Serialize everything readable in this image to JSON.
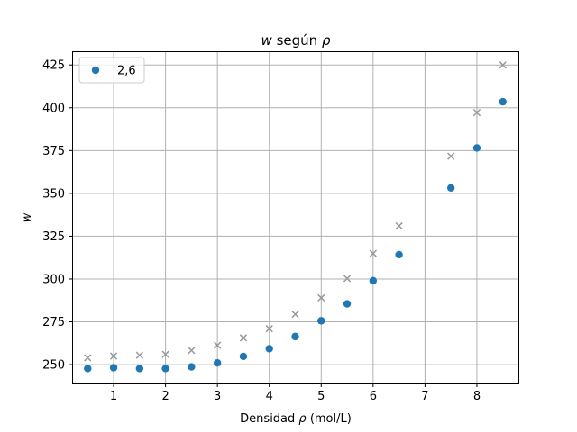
{
  "chart_data": {
    "type": "scatter",
    "title": {
      "var": "w",
      "mid": " según ",
      "sym": "ρ"
    },
    "xlabel": {
      "pre": "Densidad ",
      "sym": "ρ",
      "post": " (mol/L)"
    },
    "ylabel": "w",
    "xlim": [
      0.2,
      8.8
    ],
    "ylim": [
      239,
      433
    ],
    "xticks": [
      1,
      2,
      3,
      4,
      5,
      6,
      7,
      8
    ],
    "yticks": [
      250,
      275,
      300,
      325,
      350,
      375,
      400,
      425
    ],
    "grid": true,
    "legend_position": "top-left",
    "series": [
      {
        "name": "2,6",
        "marker": "circle",
        "color": "#1f77b4",
        "x": [
          0.5,
          1.0,
          1.5,
          2.0,
          2.5,
          3.0,
          3.5,
          4.0,
          4.5,
          5.0,
          5.5,
          6.0,
          6.5,
          7.5,
          8.0,
          8.5
        ],
        "y": [
          247.7,
          248.2,
          247.7,
          247.7,
          248.7,
          251.0,
          254.8,
          259.3,
          266.4,
          275.6,
          285.5,
          299.0,
          314.2,
          353.2,
          376.5,
          403.5
        ]
      },
      {
        "marker": "x",
        "color": "#999999",
        "x": [
          0.5,
          1.0,
          1.5,
          2.0,
          2.5,
          3.0,
          3.5,
          4.0,
          4.5,
          5.0,
          5.5,
          6.0,
          6.5,
          7.5,
          8.0,
          8.5
        ],
        "y": [
          254.0,
          255.0,
          255.5,
          256.0,
          258.3,
          261.3,
          265.6,
          271.0,
          279.4,
          289.0,
          300.3,
          314.9,
          331.0,
          371.7,
          397.2,
          425.0
        ]
      }
    ]
  }
}
